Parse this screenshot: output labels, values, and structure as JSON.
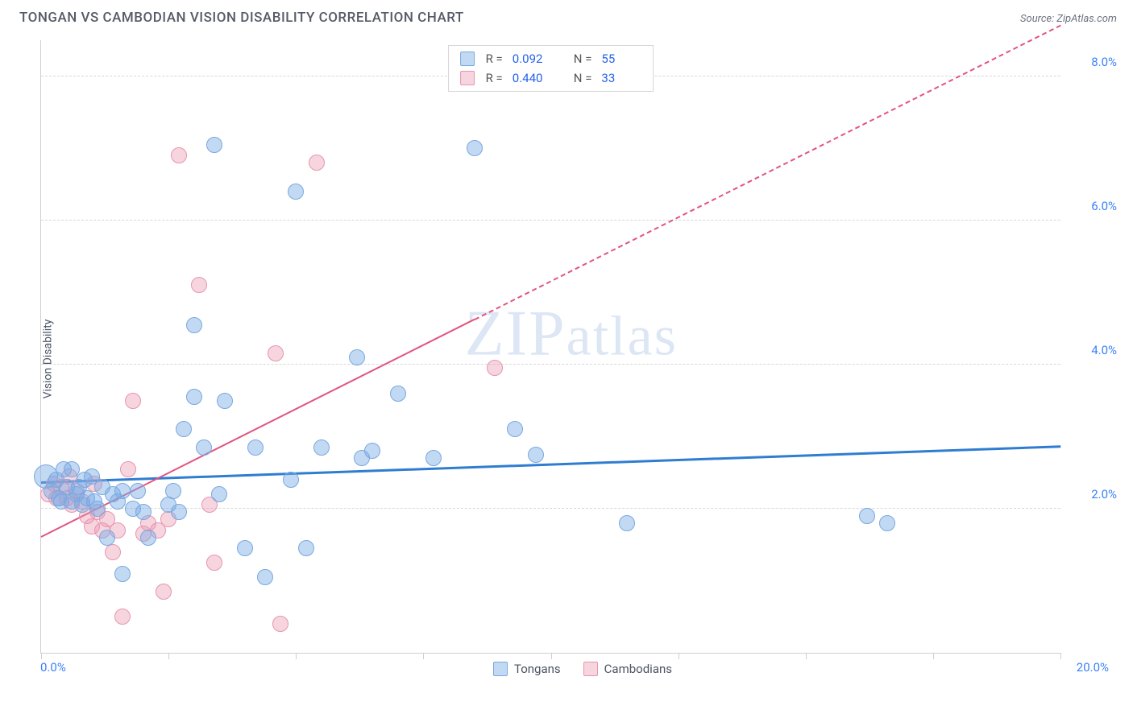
{
  "title": "TONGAN VS CAMBODIAN VISION DISABILITY CORRELATION CHART",
  "source": "Source: ZipAtlas.com",
  "ylabel": "Vision Disability",
  "watermark": "ZIPatlas",
  "chart": {
    "type": "scatter",
    "xlim": [
      0,
      20
    ],
    "ylim": [
      0,
      8.5
    ],
    "x_tick_labels": {
      "min": "0.0%",
      "max": "20.0%"
    },
    "y_grid": [
      2.0,
      4.0,
      6.0,
      8.0
    ],
    "y_tick_labels": [
      "2.0%",
      "4.0%",
      "6.0%",
      "8.0%"
    ],
    "x_ticks_minor_step": 2.5,
    "background_color": "#ffffff",
    "grid_color": "#d8d8d8",
    "axis_color": "#cfcfcf",
    "tick_label_color": "#3b82f6",
    "tick_label_fontsize": 15,
    "series": {
      "tongans": {
        "label": "Tongans",
        "color_fill": "rgba(120,170,230,0.45)",
        "color_stroke": "#7aa8dd",
        "marker_radius": 10,
        "regression": {
          "R": 0.092,
          "N": 55,
          "y_at_xmin": 2.35,
          "y_at_xmax": 2.85,
          "line_color": "#2f7dd1",
          "line_width": 3,
          "solid_until_x": 20
        },
        "points": [
          {
            "x": 0.1,
            "y": 2.45,
            "radius": 15
          },
          {
            "x": 0.2,
            "y": 2.25
          },
          {
            "x": 0.3,
            "y": 2.4
          },
          {
            "x": 0.4,
            "y": 2.1
          },
          {
            "x": 0.5,
            "y": 2.3
          },
          {
            "x": 0.6,
            "y": 2.55
          },
          {
            "x": 0.7,
            "y": 2.2
          },
          {
            "x": 0.8,
            "y": 2.05
          },
          {
            "x": 0.9,
            "y": 2.15
          },
          {
            "x": 1.0,
            "y": 2.45
          },
          {
            "x": 1.1,
            "y": 2.0
          },
          {
            "x": 1.2,
            "y": 2.3
          },
          {
            "x": 1.3,
            "y": 1.6
          },
          {
            "x": 1.4,
            "y": 2.2
          },
          {
            "x": 1.5,
            "y": 2.1
          },
          {
            "x": 1.6,
            "y": 1.1
          },
          {
            "x": 1.8,
            "y": 2.0
          },
          {
            "x": 1.9,
            "y": 2.25
          },
          {
            "x": 2.0,
            "y": 1.95
          },
          {
            "x": 2.1,
            "y": 1.6
          },
          {
            "x": 2.5,
            "y": 2.05
          },
          {
            "x": 2.6,
            "y": 2.25
          },
          {
            "x": 2.7,
            "y": 1.95
          },
          {
            "x": 2.8,
            "y": 3.1
          },
          {
            "x": 3.0,
            "y": 3.55
          },
          {
            "x": 3.0,
            "y": 4.55
          },
          {
            "x": 3.2,
            "y": 2.85
          },
          {
            "x": 3.4,
            "y": 7.05
          },
          {
            "x": 3.5,
            "y": 2.2
          },
          {
            "x": 3.6,
            "y": 3.5
          },
          {
            "x": 4.0,
            "y": 1.45
          },
          {
            "x": 4.2,
            "y": 2.85
          },
          {
            "x": 4.4,
            "y": 1.05
          },
          {
            "x": 4.9,
            "y": 2.4
          },
          {
            "x": 5.0,
            "y": 6.4
          },
          {
            "x": 5.2,
            "y": 1.45
          },
          {
            "x": 5.5,
            "y": 2.85
          },
          {
            "x": 6.2,
            "y": 4.1
          },
          {
            "x": 6.3,
            "y": 2.7
          },
          {
            "x": 6.5,
            "y": 2.8
          },
          {
            "x": 7.0,
            "y": 3.6
          },
          {
            "x": 7.7,
            "y": 2.7
          },
          {
            "x": 8.5,
            "y": 7.0
          },
          {
            "x": 9.3,
            "y": 3.1
          },
          {
            "x": 9.7,
            "y": 2.75
          },
          {
            "x": 11.5,
            "y": 1.8
          },
          {
            "x": 16.2,
            "y": 1.9
          },
          {
            "x": 16.6,
            "y": 1.8
          },
          {
            "x": 0.6,
            "y": 2.1
          },
          {
            "x": 0.75,
            "y": 2.3
          },
          {
            "x": 0.85,
            "y": 2.4
          },
          {
            "x": 1.05,
            "y": 2.1
          },
          {
            "x": 0.45,
            "y": 2.55
          },
          {
            "x": 0.35,
            "y": 2.15
          },
          {
            "x": 1.6,
            "y": 2.25
          }
        ]
      },
      "cambodians": {
        "label": "Cambodians",
        "color_fill": "rgba(235,150,175,0.4)",
        "color_stroke": "#e695af",
        "marker_radius": 10,
        "regression": {
          "R": 0.44,
          "N": 33,
          "y_at_xmin": 1.6,
          "y_at_xmax": 8.7,
          "line_color": "#e2547f",
          "line_width": 2.5,
          "solid_until_x": 8.5
        },
        "points": [
          {
            "x": 0.15,
            "y": 2.2
          },
          {
            "x": 0.3,
            "y": 2.15
          },
          {
            "x": 0.4,
            "y": 2.3
          },
          {
            "x": 0.5,
            "y": 2.15
          },
          {
            "x": 0.55,
            "y": 2.45
          },
          {
            "x": 0.6,
            "y": 2.05
          },
          {
            "x": 0.7,
            "y": 2.25
          },
          {
            "x": 0.8,
            "y": 2.1
          },
          {
            "x": 0.9,
            "y": 1.9
          },
          {
            "x": 1.0,
            "y": 1.75
          },
          {
            "x": 1.1,
            "y": 1.95
          },
          {
            "x": 1.2,
            "y": 1.7
          },
          {
            "x": 1.3,
            "y": 1.85
          },
          {
            "x": 1.4,
            "y": 1.4
          },
          {
            "x": 1.5,
            "y": 1.7
          },
          {
            "x": 1.6,
            "y": 0.5
          },
          {
            "x": 1.7,
            "y": 2.55
          },
          {
            "x": 1.8,
            "y": 3.5
          },
          {
            "x": 2.0,
            "y": 1.65
          },
          {
            "x": 2.1,
            "y": 1.8
          },
          {
            "x": 2.3,
            "y": 1.7
          },
          {
            "x": 2.4,
            "y": 0.85
          },
          {
            "x": 2.5,
            "y": 1.85
          },
          {
            "x": 2.7,
            "y": 6.9
          },
          {
            "x": 3.1,
            "y": 5.1
          },
          {
            "x": 3.3,
            "y": 2.05
          },
          {
            "x": 3.4,
            "y": 1.25
          },
          {
            "x": 4.6,
            "y": 4.15
          },
          {
            "x": 4.7,
            "y": 0.4
          },
          {
            "x": 5.4,
            "y": 6.8
          },
          {
            "x": 8.9,
            "y": 3.95
          },
          {
            "x": 1.05,
            "y": 2.35
          },
          {
            "x": 0.25,
            "y": 2.35
          }
        ]
      }
    }
  },
  "legend_top": {
    "rows": [
      {
        "swatch_fill": "rgba(120,170,230,0.45)",
        "swatch_stroke": "#7aa8dd",
        "R": "0.092",
        "N": "55"
      },
      {
        "swatch_fill": "rgba(235,150,175,0.4)",
        "swatch_stroke": "#e695af",
        "R": "0.440",
        "N": "33"
      }
    ],
    "R_label": "R =",
    "N_label": "N ="
  },
  "legend_bottom": [
    {
      "swatch_fill": "rgba(120,170,230,0.45)",
      "swatch_stroke": "#7aa8dd",
      "label": "Tongans"
    },
    {
      "swatch_fill": "rgba(235,150,175,0.4)",
      "swatch_stroke": "#e695af",
      "label": "Cambodians"
    }
  ]
}
